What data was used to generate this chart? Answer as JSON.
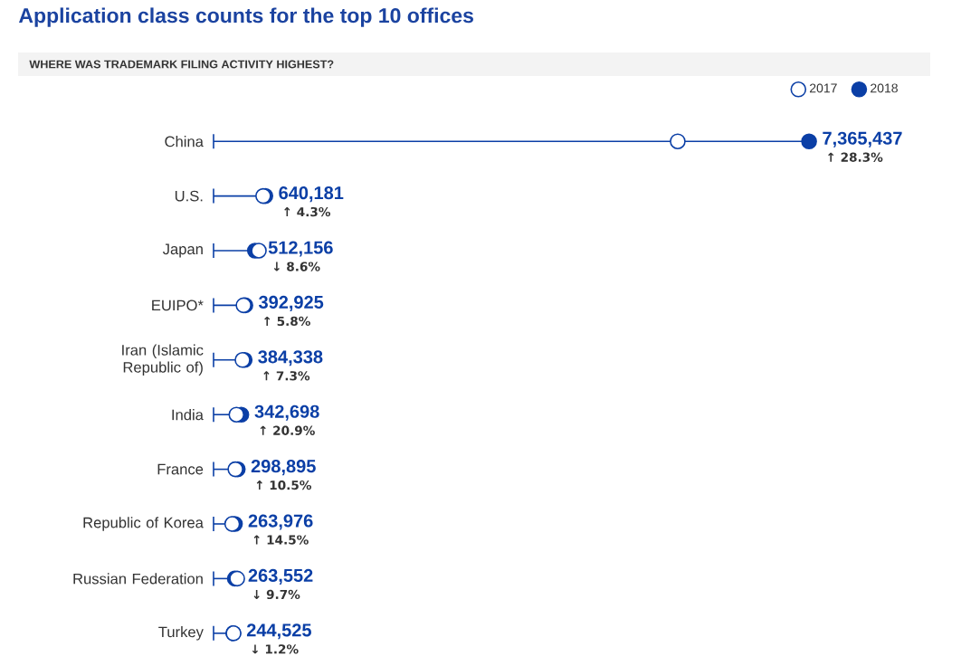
{
  "chart_data": {
    "type": "lollipop",
    "orientation": "horizontal",
    "title": "Application class counts for the top 10 offices",
    "subtitle": "WHERE WAS TRADEMARK FILING ACTIVITY HIGHEST?",
    "categories": [
      "China",
      "U.S.",
      "Japan",
      "EUIPO*",
      "Iran (Islamic Republic of)",
      "India",
      "France",
      "Republic of Korea",
      "Russian Federation",
      "Turkey"
    ],
    "series": [
      {
        "name": "2017",
        "color": "#0b3fa6",
        "values": [
          5741000,
          614000,
          560000,
          371000,
          358000,
          283000,
          270000,
          231000,
          292000,
          247000
        ]
      },
      {
        "name": "2018",
        "color": "#0b3fa6",
        "values": [
          7365437,
          640181,
          512156,
          392925,
          384338,
          342698,
          298895,
          263976,
          263552,
          244525
        ],
        "value_labels": [
          "7,365,437",
          "640,181",
          "512,156",
          "392,925",
          "384,338",
          "342,698",
          "298,895",
          "263,976",
          "263,552",
          "244,525"
        ]
      }
    ],
    "annotations": [
      "↑ 28.3%",
      "↑ 4.3%",
      "↓ 8.6%",
      "↑ 5.8%",
      "↑ 7.3%",
      "↑ 20.9%",
      "↑ 10.5%",
      "↑ 14.5%",
      "↓ 9.7%",
      "↓ 1.2%"
    ],
    "xlim": [
      0,
      7400000
    ],
    "tick_labels": "y",
    "legend": "top right"
  }
}
